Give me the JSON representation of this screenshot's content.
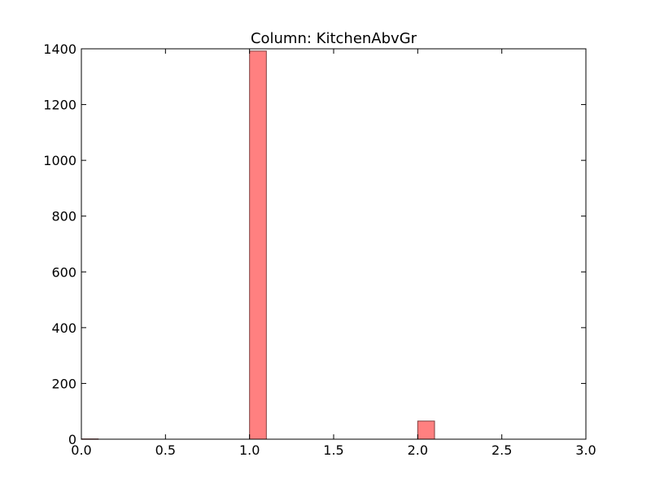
{
  "chart_data": {
    "type": "bar",
    "title": "Column: KitchenAbvGr",
    "xlabel": "",
    "ylabel": "",
    "xlim": [
      0.0,
      3.0
    ],
    "ylim": [
      0,
      1400
    ],
    "x_ticks": [
      "0.0",
      "0.5",
      "1.0",
      "1.5",
      "2.0",
      "2.5",
      "3.0"
    ],
    "y_ticks": [
      "0",
      "200",
      "400",
      "600",
      "800",
      "1000",
      "1200",
      "1400"
    ],
    "bin_width": 0.1,
    "bins": [
      {
        "x": 0.0,
        "value": 1
      },
      {
        "x": 1.0,
        "value": 1392
      },
      {
        "x": 2.0,
        "value": 65
      }
    ],
    "grid": false,
    "colors": {
      "bar_fill": "#ff8080",
      "bar_edge": "#7f4040",
      "axis": "#000000"
    }
  }
}
